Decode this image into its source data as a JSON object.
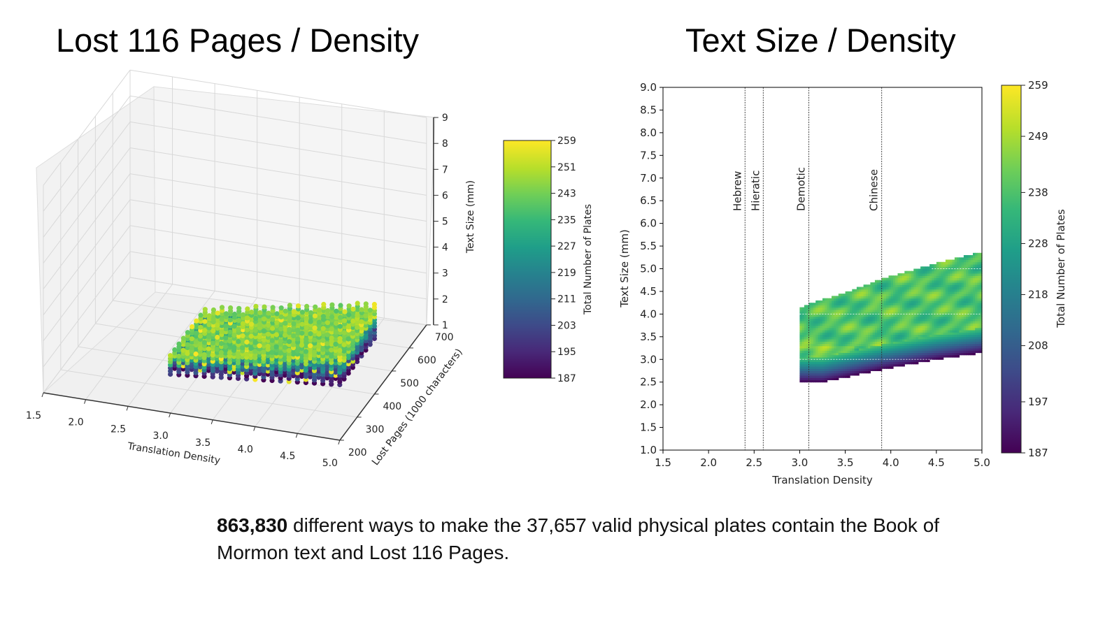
{
  "slide": {
    "caption_bold": "863,830",
    "caption_rest": " different ways to make the 37,657 valid physical plates contain the Book of Mormon text and Lost 116 Pages."
  },
  "chart_data": [
    {
      "type": "scatter",
      "title": "Lost 116 Pages / Density",
      "xlabel": "Translation Density",
      "ylabel": "Lost Pages (1000 characters)",
      "zlabel": "Text Size (mm)",
      "xlim": [
        1.5,
        5.0
      ],
      "ylim": [
        200,
        700
      ],
      "zlim": [
        1,
        9
      ],
      "x_ticks": [
        "1.5",
        "2.0",
        "2.5",
        "3.0",
        "3.5",
        "4.0",
        "4.5",
        "5.0"
      ],
      "y_ticks": [
        "200",
        "300",
        "400",
        "500",
        "600",
        "700"
      ],
      "z_ticks": [
        "1",
        "2",
        "3",
        "4",
        "5",
        "6",
        "7",
        "8",
        "9"
      ],
      "point_x_range": [
        3.0,
        5.0
      ],
      "point_y_range": [
        200,
        400
      ],
      "point_z_range": [
        2.5,
        5.3
      ],
      "colorbar": {
        "label": "Total Number of Plates",
        "min": 187,
        "max": 259,
        "ticks": [
          "259",
          "251",
          "243",
          "235",
          "227",
          "219",
          "211",
          "203",
          "195",
          "187"
        ]
      }
    },
    {
      "type": "heatmap",
      "title": "Text Size / Density",
      "xlabel": "Translation Density",
      "ylabel": "Text Size (mm)",
      "xlim": [
        1.5,
        5.0
      ],
      "ylim": [
        1.0,
        9.0
      ],
      "x_ticks": [
        "1.5",
        "2.0",
        "2.5",
        "3.0",
        "3.5",
        "4.0",
        "4.5",
        "5.0"
      ],
      "y_ticks": [
        "1.0",
        "1.5",
        "2.0",
        "2.5",
        "3.0",
        "3.5",
        "4.0",
        "4.5",
        "5.0",
        "5.5",
        "6.0",
        "6.5",
        "7.0",
        "7.5",
        "8.0",
        "8.5",
        "9.0"
      ],
      "region_top": [
        [
          3.0,
          4.1
        ],
        [
          3.1,
          4.2
        ],
        [
          3.5,
          4.45
        ],
        [
          3.9,
          4.75
        ],
        [
          4.5,
          5.1
        ],
        [
          5.0,
          5.35
        ]
      ],
      "region_bottom": [
        [
          3.0,
          2.5
        ],
        [
          3.25,
          2.5
        ],
        [
          3.9,
          2.78
        ],
        [
          4.5,
          3.0
        ],
        [
          5.0,
          3.15
        ]
      ],
      "reference_lines": [
        {
          "label": "Hebrew",
          "x": 2.4
        },
        {
          "label": "Hieratic",
          "x": 2.6
        },
        {
          "label": "Demotic",
          "x": 3.1
        },
        {
          "label": "Chinese",
          "x": 3.9
        }
      ],
      "colorbar": {
        "label": "Total Number of Plates",
        "min": 187,
        "max": 259,
        "ticks": [
          "259",
          "249",
          "238",
          "228",
          "218",
          "208",
          "197",
          "187"
        ],
        "tick_values": [
          259,
          249,
          238,
          228,
          218,
          208,
          197,
          187
        ]
      }
    }
  ]
}
